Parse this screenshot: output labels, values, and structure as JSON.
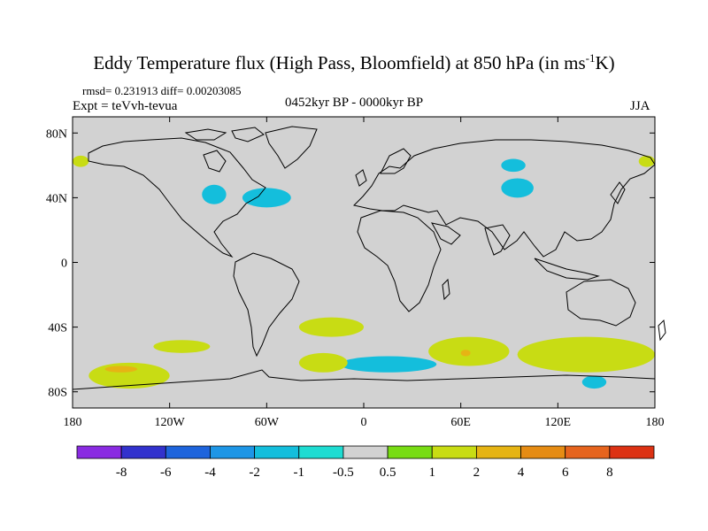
{
  "title": "Eddy Temperature flux (High Pass, Bloomfield) at 850 hPa (in ms",
  "title_sup": "-1",
  "title_end": "K)",
  "stats": "rmsd= 0.231913 diff= 0.00203085",
  "expt": "Expt = teVvh-tevua",
  "period": "0452kyr BP - 0000kyr BP",
  "season": "JJA",
  "background_color": "#d2d2d2",
  "coastline_color": "#000000",
  "x_ticks": [
    "180",
    "120W",
    "60W",
    "0",
    "60E",
    "120E",
    "180"
  ],
  "y_ticks": [
    "80N",
    "40N",
    "0",
    "40S",
    "80S"
  ],
  "colorbar": {
    "labels": [
      "-8",
      "-6",
      "-4",
      "-2",
      "-1",
      "-0.5",
      "0.5",
      "1",
      "2",
      "4",
      "6",
      "8"
    ],
    "colors": [
      "#8a2be2",
      "#3232cd",
      "#1e64dc",
      "#1e96e6",
      "#14bedc",
      "#1edcd2",
      "#d2d2d2",
      "#78dc14",
      "#c8dc14",
      "#e6b414",
      "#e68c14",
      "#e6641e",
      "#dc3214"
    ]
  },
  "chart_data": {
    "type": "map",
    "projection": "cylindrical equidistant",
    "xlim": [
      -180,
      180
    ],
    "ylim": [
      -90,
      90
    ],
    "variable": "Eddy Temperature flux (High Pass, Bloomfield) at 850 hPa",
    "units": "ms-1K",
    "levels": [
      -8,
      -6,
      -4,
      -2,
      -1,
      -0.5,
      0.5,
      1,
      2,
      4,
      6,
      8
    ],
    "regions": [
      {
        "level": "-1",
        "lon": [
          -100,
          -85
        ],
        "lat": [
          36,
          48
        ]
      },
      {
        "level": "-1",
        "lon": [
          -75,
          -45
        ],
        "lat": [
          34,
          46
        ]
      },
      {
        "level": "-1",
        "lon": [
          85,
          105
        ],
        "lat": [
          40,
          52
        ]
      },
      {
        "level": "-1",
        "lon": [
          85,
          100
        ],
        "lat": [
          56,
          64
        ]
      },
      {
        "level": "-1",
        "lon": [
          -15,
          45
        ],
        "lat": [
          -68,
          -58
        ]
      },
      {
        "level": "-1",
        "lon": [
          135,
          150
        ],
        "lat": [
          -78,
          -70
        ]
      },
      {
        "level": "1",
        "lon": [
          -180,
          -170
        ],
        "lat": [
          59,
          66
        ]
      },
      {
        "level": "1",
        "lon": [
          170,
          180
        ],
        "lat": [
          59,
          66
        ]
      },
      {
        "level": "1",
        "lon": [
          -40,
          0
        ],
        "lat": [
          -46,
          -34
        ]
      },
      {
        "level": "1",
        "lon": [
          -170,
          -120
        ],
        "lat": [
          -78,
          -62
        ]
      },
      {
        "level": "1",
        "lon": [
          -130,
          -95
        ],
        "lat": [
          -56,
          -48
        ]
      },
      {
        "level": "1",
        "lon": [
          40,
          90
        ],
        "lat": [
          -64,
          -46
        ]
      },
      {
        "level": "1",
        "lon": [
          95,
          180
        ],
        "lat": [
          -68,
          -46
        ]
      },
      {
        "level": "1",
        "lon": [
          -40,
          -10
        ],
        "lat": [
          -68,
          -56
        ]
      },
      {
        "level": "2",
        "lon": [
          -160,
          -140
        ],
        "lat": [
          -68,
          -64
        ]
      },
      {
        "level": "2",
        "lon": [
          60,
          66
        ],
        "lat": [
          -58,
          -54
        ]
      }
    ]
  }
}
